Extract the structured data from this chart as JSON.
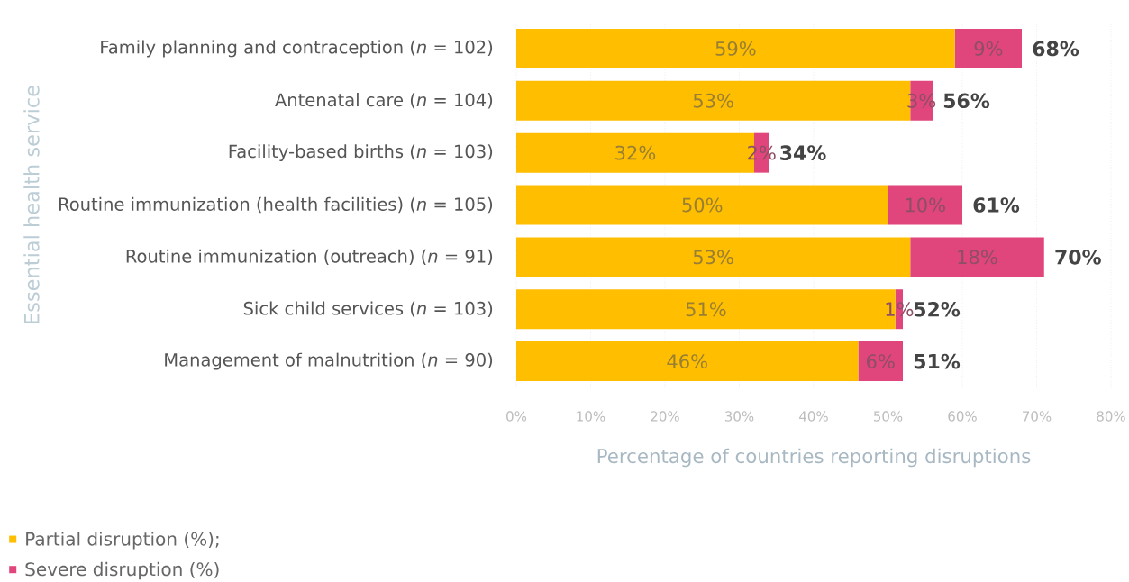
{
  "chart_data": {
    "type": "bar",
    "orientation": "horizontal",
    "stacked": true,
    "ylabel": "Essential health service",
    "xlabel": "Percentage of countries reporting disruptions",
    "categories": [
      "Family planning and contraception (*n* = 102)",
      "Antenatal care (*n* = 104)",
      "Facility-based births (*n* = 103)",
      "Routine immunization (health facilities) (*n* = 105)",
      "Routine immunization (outreach) (*n* = 91)",
      "Sick child services (*n* = 103)",
      "Management of malnutrition (*n* = 90)"
    ],
    "series": [
      {
        "name": "Partial disruption (%);",
        "color": "#FFBE00",
        "values": [
          59,
          53,
          32,
          50,
          53,
          51,
          46
        ],
        "value_labels": [
          "59%",
          "53%",
          "32%",
          "50%",
          "53%",
          "51%",
          "46%"
        ]
      },
      {
        "name": "Severe disruption (%)",
        "color": "#E0457B",
        "values": [
          9,
          3,
          2,
          10,
          18,
          1,
          6
        ],
        "value_labels": [
          "9%",
          "3%",
          "2%",
          "10%",
          "18%",
          "1%",
          "6%"
        ]
      }
    ],
    "totals": [
      "68%",
      "56%",
      "34%",
      "61%",
      "70%",
      "52%",
      "51%"
    ],
    "xlim": [
      0,
      80
    ],
    "xticks": [
      {
        "value": 0,
        "label": "0%"
      },
      {
        "value": 10,
        "label": "10%"
      },
      {
        "value": 20,
        "label": "20%"
      },
      {
        "value": 30,
        "label": "30%"
      },
      {
        "value": 40,
        "label": "40%"
      },
      {
        "value": 50,
        "label": "50%"
      },
      {
        "value": 60,
        "label": "60%"
      },
      {
        "value": 70,
        "label": "70%"
      },
      {
        "value": 80,
        "label": "80%"
      }
    ],
    "grid": "x",
    "legend": "bottom left"
  }
}
